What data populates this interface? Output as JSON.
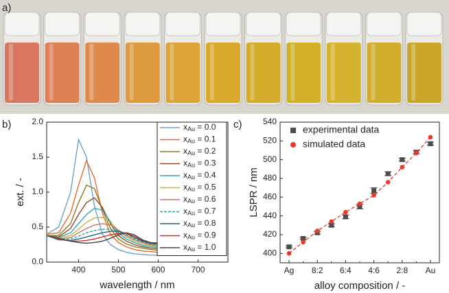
{
  "panels": [
    "a)",
    "b)",
    "c)"
  ],
  "chart_data": [
    {
      "type": "line",
      "xlabel": "wavelength / nm",
      "ylabel": "ext. / -",
      "x": [
        320,
        350,
        380,
        400,
        420,
        440,
        460,
        480,
        500,
        520,
        540,
        560,
        580,
        600
      ],
      "xlim": [
        320,
        775
      ],
      "xticks": [
        400,
        500,
        600,
        700
      ],
      "ylim": [
        0,
        2
      ],
      "yticks": [
        {
          "value": 0,
          "label": "0.0"
        },
        {
          "value": 0.5,
          "label": "0.5"
        },
        {
          "value": 1,
          "label": "1.0"
        },
        {
          "value": 1.5,
          "label": "1.5"
        },
        {
          "value": 2,
          "label": "2.0"
        }
      ],
      "series": [
        {
          "name": "xAu = 0.0",
          "color": "#6a9fcf",
          "values": [
            0.4,
            0.5,
            1.0,
            1.75,
            1.5,
            0.8,
            0.4,
            0.25,
            0.18,
            0.14,
            0.12,
            0.11,
            0.1,
            0.1
          ]
        },
        {
          "name": "xAu = 0.1",
          "color": "#e8692a",
          "values": [
            0.4,
            0.42,
            0.7,
            1.1,
            1.45,
            1.2,
            0.7,
            0.4,
            0.28,
            0.22,
            0.18,
            0.16,
            0.15,
            0.14
          ]
        },
        {
          "name": "xAu = 0.2",
          "color": "#8c7a1e",
          "values": [
            0.38,
            0.38,
            0.55,
            0.85,
            1.1,
            1.05,
            0.75,
            0.48,
            0.33,
            0.26,
            0.22,
            0.2,
            0.18,
            0.17
          ]
        },
        {
          "name": "xAu = 0.3",
          "color": "#8b4a2b",
          "values": [
            0.38,
            0.36,
            0.48,
            0.68,
            0.85,
            0.92,
            0.78,
            0.55,
            0.38,
            0.3,
            0.25,
            0.22,
            0.2,
            0.19
          ]
        },
        {
          "name": "xAu = 0.4",
          "color": "#2ba5b8",
          "values": [
            0.38,
            0.35,
            0.42,
            0.55,
            0.68,
            0.77,
            0.74,
            0.58,
            0.42,
            0.33,
            0.28,
            0.24,
            0.22,
            0.21
          ]
        },
        {
          "name": "xAu = 0.5",
          "color": "#c8b43c",
          "values": [
            0.38,
            0.34,
            0.38,
            0.47,
            0.57,
            0.63,
            0.64,
            0.57,
            0.45,
            0.36,
            0.3,
            0.26,
            0.24,
            0.22
          ]
        },
        {
          "name": "xAu = 0.6",
          "color": "#c2796b",
          "values": [
            0.38,
            0.33,
            0.35,
            0.42,
            0.48,
            0.53,
            0.55,
            0.53,
            0.46,
            0.38,
            0.32,
            0.28,
            0.25,
            0.24
          ]
        },
        {
          "name": "xAu = 0.7",
          "color": "#27a0a8",
          "dashed": true,
          "values": [
            0.38,
            0.32,
            0.33,
            0.37,
            0.42,
            0.45,
            0.47,
            0.47,
            0.44,
            0.39,
            0.33,
            0.29,
            0.26,
            0.25
          ]
        },
        {
          "name": "xAu = 0.8",
          "color": "#1f5f7a",
          "values": [
            0.38,
            0.32,
            0.31,
            0.33,
            0.36,
            0.39,
            0.42,
            0.44,
            0.44,
            0.41,
            0.35,
            0.3,
            0.27,
            0.26
          ]
        },
        {
          "name": "xAu = 0.9",
          "color": "#d62d20",
          "values": [
            0.38,
            0.33,
            0.3,
            0.3,
            0.31,
            0.33,
            0.36,
            0.39,
            0.41,
            0.41,
            0.37,
            0.31,
            0.28,
            0.27
          ]
        },
        {
          "name": "xAu = 1.0",
          "color": "#444444",
          "values": [
            0.38,
            0.34,
            0.3,
            0.28,
            0.27,
            0.28,
            0.3,
            0.34,
            0.39,
            0.42,
            0.39,
            0.32,
            0.28,
            0.27
          ]
        }
      ]
    },
    {
      "type": "scatter",
      "xlabel": "alloy composition / -",
      "ylabel": "LSPR / nm",
      "categories": [
        "Ag",
        null,
        "8:2",
        null,
        "6:4",
        null,
        "4:6",
        null,
        "2:8",
        null,
        "Au"
      ],
      "ylim": [
        390,
        540
      ],
      "yticks": [
        400,
        420,
        440,
        460,
        480,
        500,
        520,
        540
      ],
      "series": [
        {
          "name": "experimental data",
          "color": "#4d4d4d",
          "marker": "square",
          "values": [
            407,
            416,
            422,
            430,
            439,
            450,
            467,
            485,
            500,
            508,
            517
          ],
          "errors": [
            1,
            1,
            1.5,
            1.5,
            2,
            2.5,
            3,
            2,
            1.5,
            1.5,
            1.5
          ]
        },
        {
          "name": "simulated data",
          "color": "#e8392a",
          "marker": "circle",
          "dashed": true,
          "values": [
            400,
            412,
            424,
            434,
            444,
            453,
            462,
            476,
            492,
            507,
            524
          ]
        }
      ]
    }
  ]
}
